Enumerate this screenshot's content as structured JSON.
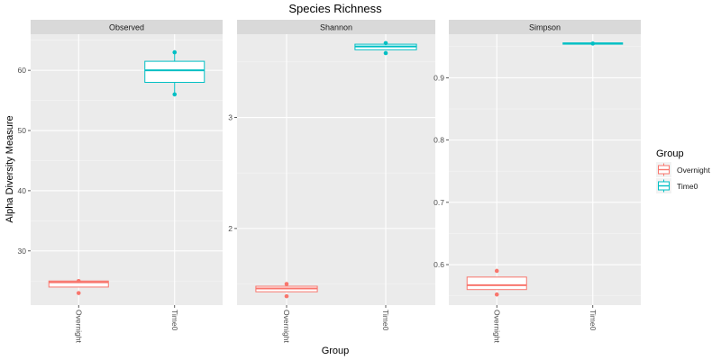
{
  "chart_data": {
    "type": "boxplot",
    "title": "Species Richness",
    "xlabel": "Group",
    "ylabel": "Alpha Diversity Measure",
    "categories": [
      "Overnight",
      "Time0"
    ],
    "legend": {
      "title": "Group",
      "position": "right",
      "entries": [
        {
          "name": "Overnight",
          "color": "#F8766D"
        },
        {
          "name": "Time0",
          "color": "#00BFC4"
        }
      ]
    },
    "grid": true,
    "panels": [
      {
        "name": "Observed",
        "ylim": [
          21,
          66
        ],
        "yticks": [
          30,
          40,
          50,
          60
        ],
        "groups": [
          {
            "category": "Overnight",
            "q1": 24,
            "median": 24.8,
            "q3": 25,
            "whisker_low": 24,
            "whisker_high": 25,
            "points": [
              23,
              25
            ]
          },
          {
            "category": "Time0",
            "q1": 58,
            "median": 60,
            "q3": 61.5,
            "whisker_low": 56,
            "whisker_high": 63,
            "points": [
              56,
              63
            ]
          }
        ]
      },
      {
        "name": "Shannon",
        "ylim": [
          1.31,
          3.75
        ],
        "yticks": [
          2,
          3
        ],
        "groups": [
          {
            "category": "Overnight",
            "q1": 1.43,
            "median": 1.46,
            "q3": 1.48,
            "whisker_low": 1.43,
            "whisker_high": 1.48,
            "points": [
              1.39,
              1.5
            ]
          },
          {
            "category": "Time0",
            "q1": 3.61,
            "median": 3.64,
            "q3": 3.66,
            "whisker_low": 3.61,
            "whisker_high": 3.67,
            "points": [
              3.58,
              3.67
            ]
          }
        ]
      },
      {
        "name": "Simpson",
        "ylim": [
          0.535,
          0.97
        ],
        "yticks": [
          0.6,
          0.7,
          0.8,
          0.9
        ],
        "ytick_labels": [
          "0.6",
          "0.7",
          "0.8",
          "0.9"
        ],
        "groups": [
          {
            "category": "Overnight",
            "q1": 0.56,
            "median": 0.567,
            "q3": 0.58,
            "whisker_low": 0.56,
            "whisker_high": 0.58,
            "points": [
              0.552,
              0.59
            ]
          },
          {
            "category": "Time0",
            "q1": 0.954,
            "median": 0.955,
            "q3": 0.956,
            "whisker_low": 0.954,
            "whisker_high": 0.956,
            "points": [
              0.955
            ]
          }
        ]
      }
    ]
  }
}
